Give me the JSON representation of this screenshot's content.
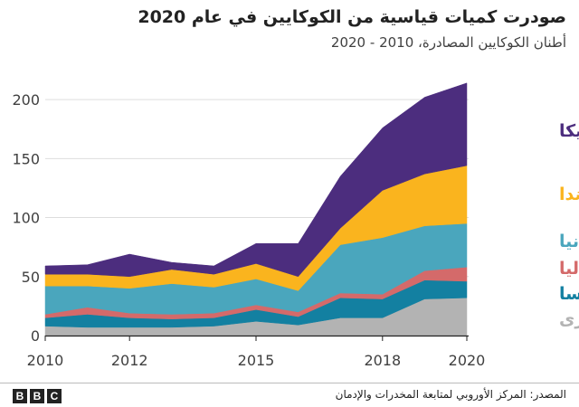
{
  "title": "صودرت كميات قياسية من الكوكايين في عام 2020",
  "subtitle": "أطنان الكوكايين المصادرة، 2010 - 2020",
  "source": "المصدر: المركز الأوروبي لمتابعة المخدرات والإدمان",
  "bbc_logo": [
    "B",
    "B",
    "C"
  ],
  "chart_data": {
    "type": "area",
    "stacked": true,
    "x": [
      2010,
      2011,
      2012,
      2013,
      2014,
      2015,
      2016,
      2017,
      2018,
      2019,
      2020
    ],
    "xticks": [
      2010,
      2012,
      2015,
      2018,
      2020
    ],
    "yticks": [
      0,
      50,
      100,
      150,
      200
    ],
    "ylim": [
      0,
      220
    ],
    "series": [
      {
        "name": "دول أخرى",
        "color": "#b3b3b3",
        "values": [
          8,
          7,
          7,
          7,
          8,
          12,
          9,
          15,
          15,
          31,
          32
        ]
      },
      {
        "name": "فرنسا",
        "color": "#1380a1",
        "values": [
          7,
          11,
          8,
          7,
          7,
          10,
          7,
          17,
          16,
          16,
          14
        ]
      },
      {
        "name": "إيطاليا",
        "color": "#d46a6a",
        "values": [
          3,
          6,
          4,
          4,
          4,
          4,
          4,
          4,
          4,
          8,
          12
        ]
      },
      {
        "name": "إسبانيا",
        "color": "#4aa6bd",
        "values": [
          24,
          18,
          21,
          26,
          22,
          22,
          18,
          41,
          48,
          38,
          37
        ]
      },
      {
        "name": "هولندا",
        "color": "#fab41e",
        "values": [
          10,
          10,
          10,
          12,
          11,
          13,
          12,
          14,
          40,
          44,
          49
        ]
      },
      {
        "name": "بلجيكا",
        "color": "#4c2d7e",
        "values": [
          7,
          8,
          19,
          6,
          7,
          17,
          28,
          44,
          53,
          65,
          70
        ]
      }
    ]
  }
}
